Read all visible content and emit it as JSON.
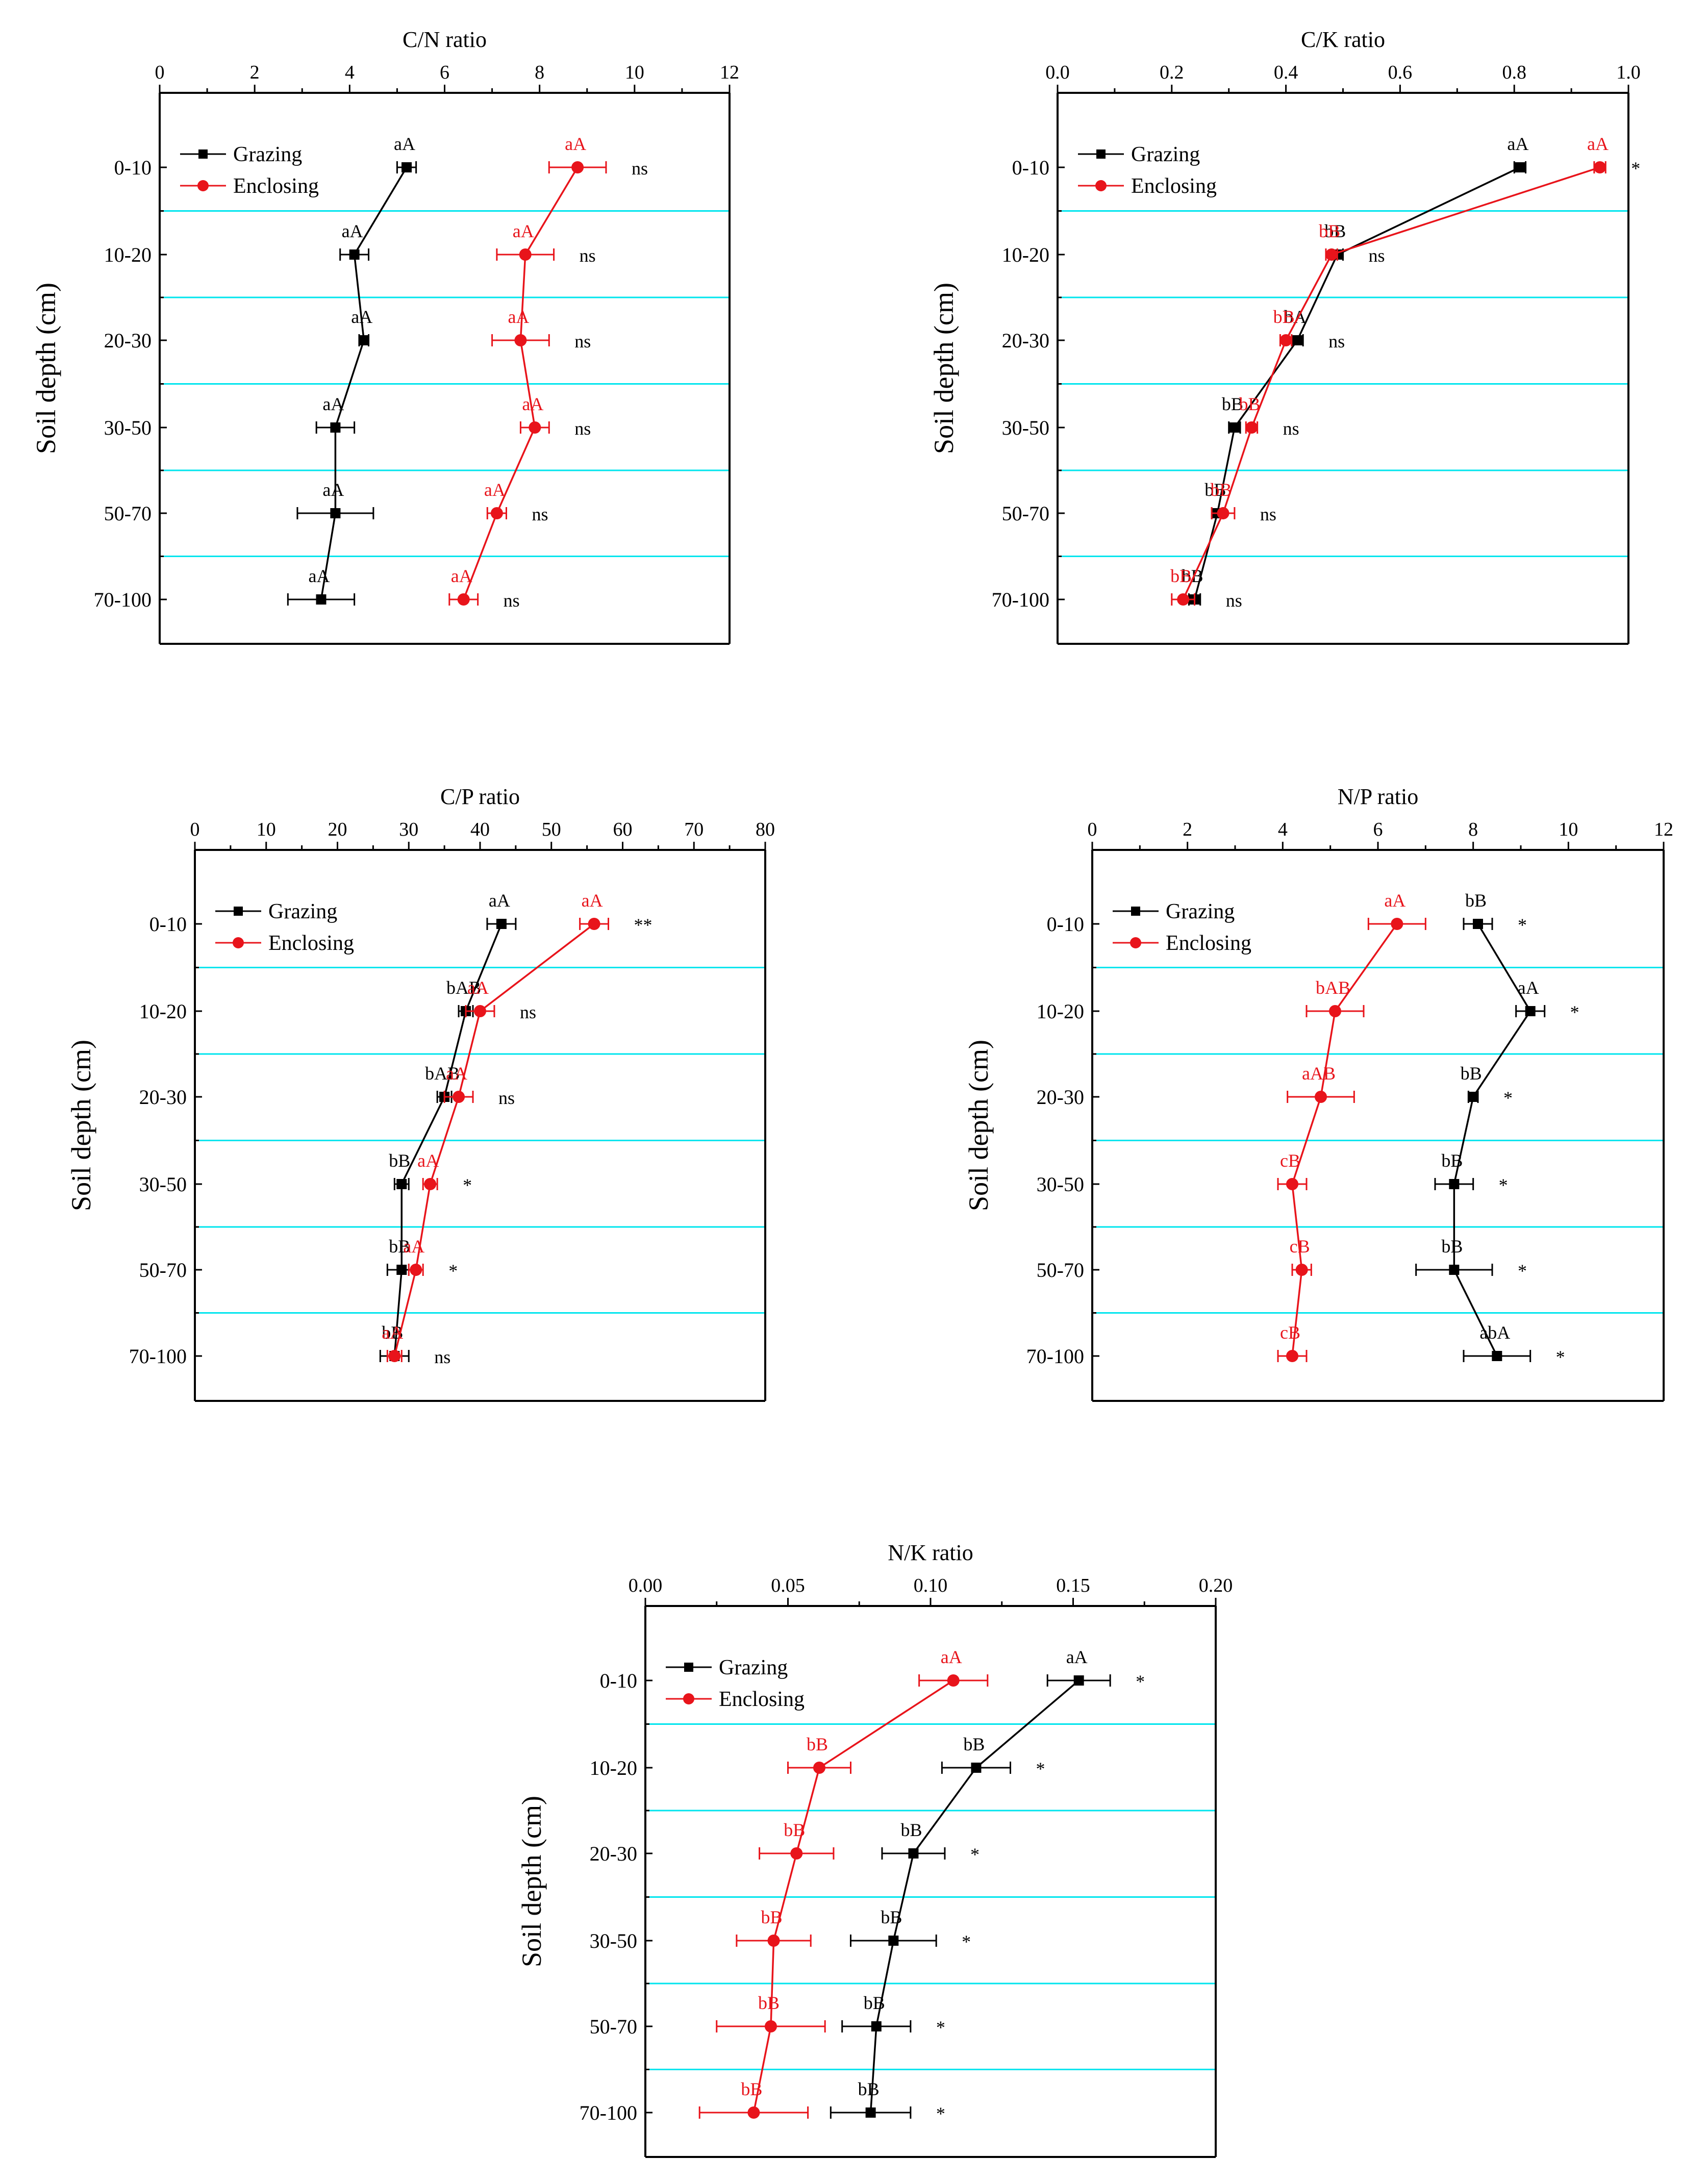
{
  "legend": {
    "grazing": "Grazing",
    "enclosing": "Enclosing"
  },
  "colors": {
    "grazing": "#000000",
    "enclosing": "#e8141b",
    "gridline": "#00e5ee"
  },
  "chart_data": [
    {
      "type": "line",
      "title": "C/N ratio",
      "ylabel": "Soil depth (cm)",
      "categories": [
        "0-10",
        "10-20",
        "20-30",
        "30-50",
        "50-70",
        "70-100"
      ],
      "xlim": [
        0,
        12
      ],
      "xticks": [
        "0",
        "2",
        "4",
        "6",
        "8",
        "10",
        "12"
      ],
      "xtick_values": [
        0,
        2,
        4,
        6,
        8,
        10,
        12
      ],
      "series": [
        {
          "name": "Grazing",
          "values": [
            5.2,
            4.1,
            4.3,
            3.7,
            3.7,
            3.4
          ],
          "errors": [
            0.2,
            0.3,
            0.1,
            0.4,
            0.8,
            0.7
          ],
          "labels": [
            "aA",
            "aA",
            "aA",
            "aA",
            "aA",
            "aA"
          ]
        },
        {
          "name": "Enclosing",
          "values": [
            8.8,
            7.7,
            7.6,
            7.9,
            7.1,
            6.4
          ],
          "errors": [
            0.6,
            0.6,
            0.6,
            0.3,
            0.2,
            0.3
          ],
          "labels": [
            "aA",
            "aA",
            "aA",
            "aA",
            "aA",
            "aA"
          ]
        }
      ],
      "significance": [
        "ns",
        "ns",
        "ns",
        "ns",
        "ns",
        "ns"
      ]
    },
    {
      "type": "line",
      "title": "C/K ratio",
      "ylabel": "Soil depth (cm)",
      "categories": [
        "0-10",
        "10-20",
        "20-30",
        "30-50",
        "50-70",
        "70-100"
      ],
      "xlim": [
        0,
        1.0
      ],
      "xticks": [
        "0.0",
        "0.2",
        "0.4",
        "0.6",
        "0.8",
        "1.0"
      ],
      "xtick_values": [
        0,
        0.2,
        0.4,
        0.6,
        0.8,
        1.0
      ],
      "series": [
        {
          "name": "Grazing",
          "values": [
            0.81,
            0.49,
            0.42,
            0.31,
            0.28,
            0.24
          ],
          "errors": [
            0.01,
            0.01,
            0.01,
            0.01,
            0.01,
            0.01
          ],
          "labels": [
            "aA",
            "bB",
            "bA",
            "bB",
            "bB",
            "bB"
          ]
        },
        {
          "name": "Enclosing",
          "values": [
            0.95,
            0.48,
            0.4,
            0.34,
            0.29,
            0.22
          ],
          "errors": [
            0.01,
            0.01,
            0.01,
            0.01,
            0.02,
            0.02
          ],
          "labels": [
            "aA",
            "bB",
            "bB",
            "bB",
            "bB",
            "bB"
          ]
        }
      ],
      "significance": [
        "*",
        "ns",
        "ns",
        "ns",
        "ns",
        "ns"
      ]
    },
    {
      "type": "line",
      "title": "C/P ratio",
      "ylabel": "Soil depth (cm)",
      "categories": [
        "0-10",
        "10-20",
        "20-30",
        "30-50",
        "50-70",
        "70-100"
      ],
      "xlim": [
        0,
        80
      ],
      "xticks": [
        "0",
        "10",
        "20",
        "30",
        "40",
        "50",
        "60",
        "70",
        "80"
      ],
      "xtick_values": [
        0,
        10,
        20,
        30,
        40,
        50,
        60,
        70,
        80
      ],
      "series": [
        {
          "name": "Grazing",
          "values": [
            43,
            38,
            35,
            29,
            29,
            28
          ],
          "errors": [
            2,
            1,
            1,
            1,
            2,
            2
          ],
          "labels": [
            "aA",
            "bAB",
            "bAB",
            "bB",
            "bB",
            "bB"
          ]
        },
        {
          "name": "Enclosing",
          "values": [
            56,
            40,
            37,
            33,
            31,
            28
          ],
          "errors": [
            2,
            2,
            2,
            1,
            1,
            1
          ],
          "labels": [
            "aA",
            "aA",
            "aA",
            "aA",
            "aA",
            "aA"
          ]
        }
      ],
      "significance": [
        "**",
        "ns",
        "ns",
        "*",
        "*",
        "ns"
      ]
    },
    {
      "type": "line",
      "title": "N/P ratio",
      "ylabel": "Soil depth (cm)",
      "categories": [
        "0-10",
        "10-20",
        "20-30",
        "30-50",
        "50-70",
        "70-100"
      ],
      "xlim": [
        0,
        12
      ],
      "xticks": [
        "0",
        "2",
        "4",
        "6",
        "8",
        "10",
        "12"
      ],
      "xtick_values": [
        0,
        2,
        4,
        6,
        8,
        10,
        12
      ],
      "series": [
        {
          "name": "Grazing",
          "values": [
            8.1,
            9.2,
            8.0,
            7.6,
            7.6,
            8.5
          ],
          "errors": [
            0.3,
            0.3,
            0.1,
            0.4,
            0.8,
            0.7
          ],
          "labels": [
            "bB",
            "aA",
            "bB",
            "bB",
            "bB",
            "abA"
          ]
        },
        {
          "name": "Enclosing",
          "values": [
            6.4,
            5.1,
            4.8,
            4.2,
            4.4,
            4.2
          ],
          "errors": [
            0.6,
            0.6,
            0.7,
            0.3,
            0.2,
            0.3
          ],
          "labels": [
            "aA",
            "bAB",
            "aAB",
            "cB",
            "cB",
            "cB"
          ]
        }
      ],
      "significance": [
        "*",
        "*",
        "*",
        "*",
        "*",
        "*"
      ]
    },
    {
      "type": "line",
      "title": "N/K ratio",
      "ylabel": "Soil depth (cm)",
      "categories": [
        "0-10",
        "10-20",
        "20-30",
        "30-50",
        "50-70",
        "70-100"
      ],
      "xlim": [
        0,
        0.2
      ],
      "xticks": [
        "0.00",
        "0.05",
        "0.10",
        "0.15",
        "0.20"
      ],
      "xtick_values": [
        0,
        0.05,
        0.1,
        0.15,
        0.2
      ],
      "series": [
        {
          "name": "Grazing",
          "values": [
            0.152,
            0.116,
            0.094,
            0.087,
            0.081,
            0.079
          ],
          "errors": [
            0.011,
            0.012,
            0.011,
            0.015,
            0.012,
            0.014
          ],
          "labels": [
            "aA",
            "bB",
            "bB",
            "bB",
            "bB",
            "bB"
          ]
        },
        {
          "name": "Enclosing",
          "values": [
            0.108,
            0.061,
            0.053,
            0.045,
            0.044,
            0.038
          ],
          "errors": [
            0.012,
            0.011,
            0.013,
            0.013,
            0.019,
            0.019
          ],
          "labels": [
            "aA",
            "bB",
            "bB",
            "bB",
            "bB",
            "bB"
          ]
        }
      ],
      "significance": [
        "*",
        "*",
        "*",
        "*",
        "*",
        "*"
      ]
    }
  ]
}
